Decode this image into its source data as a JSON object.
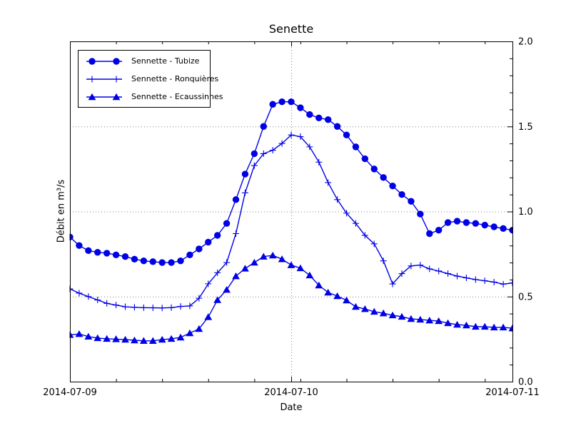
{
  "figure": {
    "background": "#ffffff"
  },
  "chart_data": {
    "type": "line",
    "title": "Senette",
    "xlabel": "Date",
    "ylabel": "Débit en m³/s",
    "x_unit": "hours since 2014-07-09 00:00",
    "x_range_hours": [
      0,
      48
    ],
    "ylim": [
      0.0,
      2.0
    ],
    "x_tick_labels": [
      "2014-07-09",
      "2014-07-10",
      "2014-07-11"
    ],
    "x_major_tick_hours": [
      0,
      24,
      48
    ],
    "x_minor_tick_step_hours": 5,
    "y_tick_labels": [
      "0.0",
      "0.5",
      "1.0",
      "1.5",
      "2.0"
    ],
    "y_major_ticks": [
      0.0,
      0.5,
      1.0,
      1.5,
      2.0
    ],
    "y_minor_tick_step": 0.1,
    "y_tick_side": "right",
    "grid": {
      "y_values": [
        0.5,
        1.0,
        1.5
      ],
      "x_hours": [
        24
      ],
      "style": "dotted",
      "color": "#808080"
    },
    "legend_position": "upper-left",
    "line_color": "#0000e6",
    "axis_color": "#000000",
    "x_hours": [
      0,
      1,
      2,
      3,
      4,
      5,
      6,
      7,
      8,
      9,
      10,
      11,
      12,
      13,
      14,
      15,
      16,
      17,
      18,
      19,
      20,
      21,
      22,
      23,
      24,
      25,
      26,
      27,
      28,
      29,
      30,
      31,
      32,
      33,
      34,
      35,
      36,
      37,
      38,
      39,
      40,
      41,
      42,
      43,
      44,
      45,
      46,
      47,
      48
    ],
    "series": [
      {
        "name": "Sennette - Tubize",
        "marker": "circle",
        "values": [
          0.85,
          0.8,
          0.77,
          0.76,
          0.755,
          0.745,
          0.735,
          0.72,
          0.71,
          0.705,
          0.7,
          0.7,
          0.71,
          0.745,
          0.78,
          0.82,
          0.86,
          0.93,
          1.07,
          1.22,
          1.34,
          1.5,
          1.63,
          1.645,
          1.645,
          1.61,
          1.57,
          1.55,
          1.54,
          1.5,
          1.45,
          1.38,
          1.31,
          1.25,
          1.2,
          1.15,
          1.1,
          1.06,
          0.985,
          0.87,
          0.89,
          0.935,
          0.943,
          0.935,
          0.93,
          0.92,
          0.91,
          0.9,
          0.89
        ]
      },
      {
        "name": "Sennette - Ronquières",
        "marker": "plus",
        "values": [
          0.545,
          0.52,
          0.5,
          0.48,
          0.46,
          0.45,
          0.44,
          0.437,
          0.435,
          0.434,
          0.433,
          0.435,
          0.442,
          0.445,
          0.49,
          0.575,
          0.64,
          0.7,
          0.87,
          1.11,
          1.27,
          1.34,
          1.36,
          1.4,
          1.45,
          1.44,
          1.38,
          1.29,
          1.17,
          1.07,
          0.99,
          0.93,
          0.86,
          0.81,
          0.71,
          0.574,
          0.635,
          0.68,
          0.685,
          0.663,
          0.65,
          0.635,
          0.62,
          0.61,
          0.6,
          0.593,
          0.585,
          0.573,
          0.58
        ]
      },
      {
        "name": "Sennette - Ecaussinnes",
        "marker": "triangle_up",
        "values": [
          0.275,
          0.28,
          0.265,
          0.256,
          0.252,
          0.25,
          0.247,
          0.243,
          0.24,
          0.24,
          0.247,
          0.252,
          0.26,
          0.285,
          0.31,
          0.38,
          0.48,
          0.54,
          0.62,
          0.665,
          0.7,
          0.735,
          0.742,
          0.72,
          0.685,
          0.667,
          0.625,
          0.566,
          0.524,
          0.503,
          0.478,
          0.44,
          0.427,
          0.411,
          0.402,
          0.39,
          0.382,
          0.369,
          0.365,
          0.36,
          0.356,
          0.344,
          0.335,
          0.331,
          0.323,
          0.323,
          0.319,
          0.319,
          0.314
        ]
      }
    ]
  }
}
